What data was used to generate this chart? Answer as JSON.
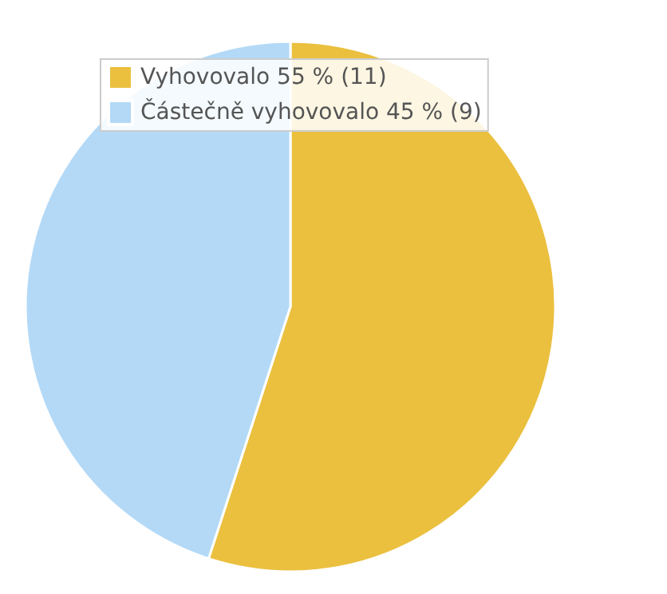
{
  "chart_data": {
    "type": "pie",
    "categories": [
      "Vyhovovalo 55 % (11)",
      "Částečně vyhovovalo 45 % (9)"
    ],
    "values": [
      11,
      9
    ],
    "colors": [
      "#ebc03f",
      "#b3d9f7"
    ],
    "legend": "top left"
  }
}
